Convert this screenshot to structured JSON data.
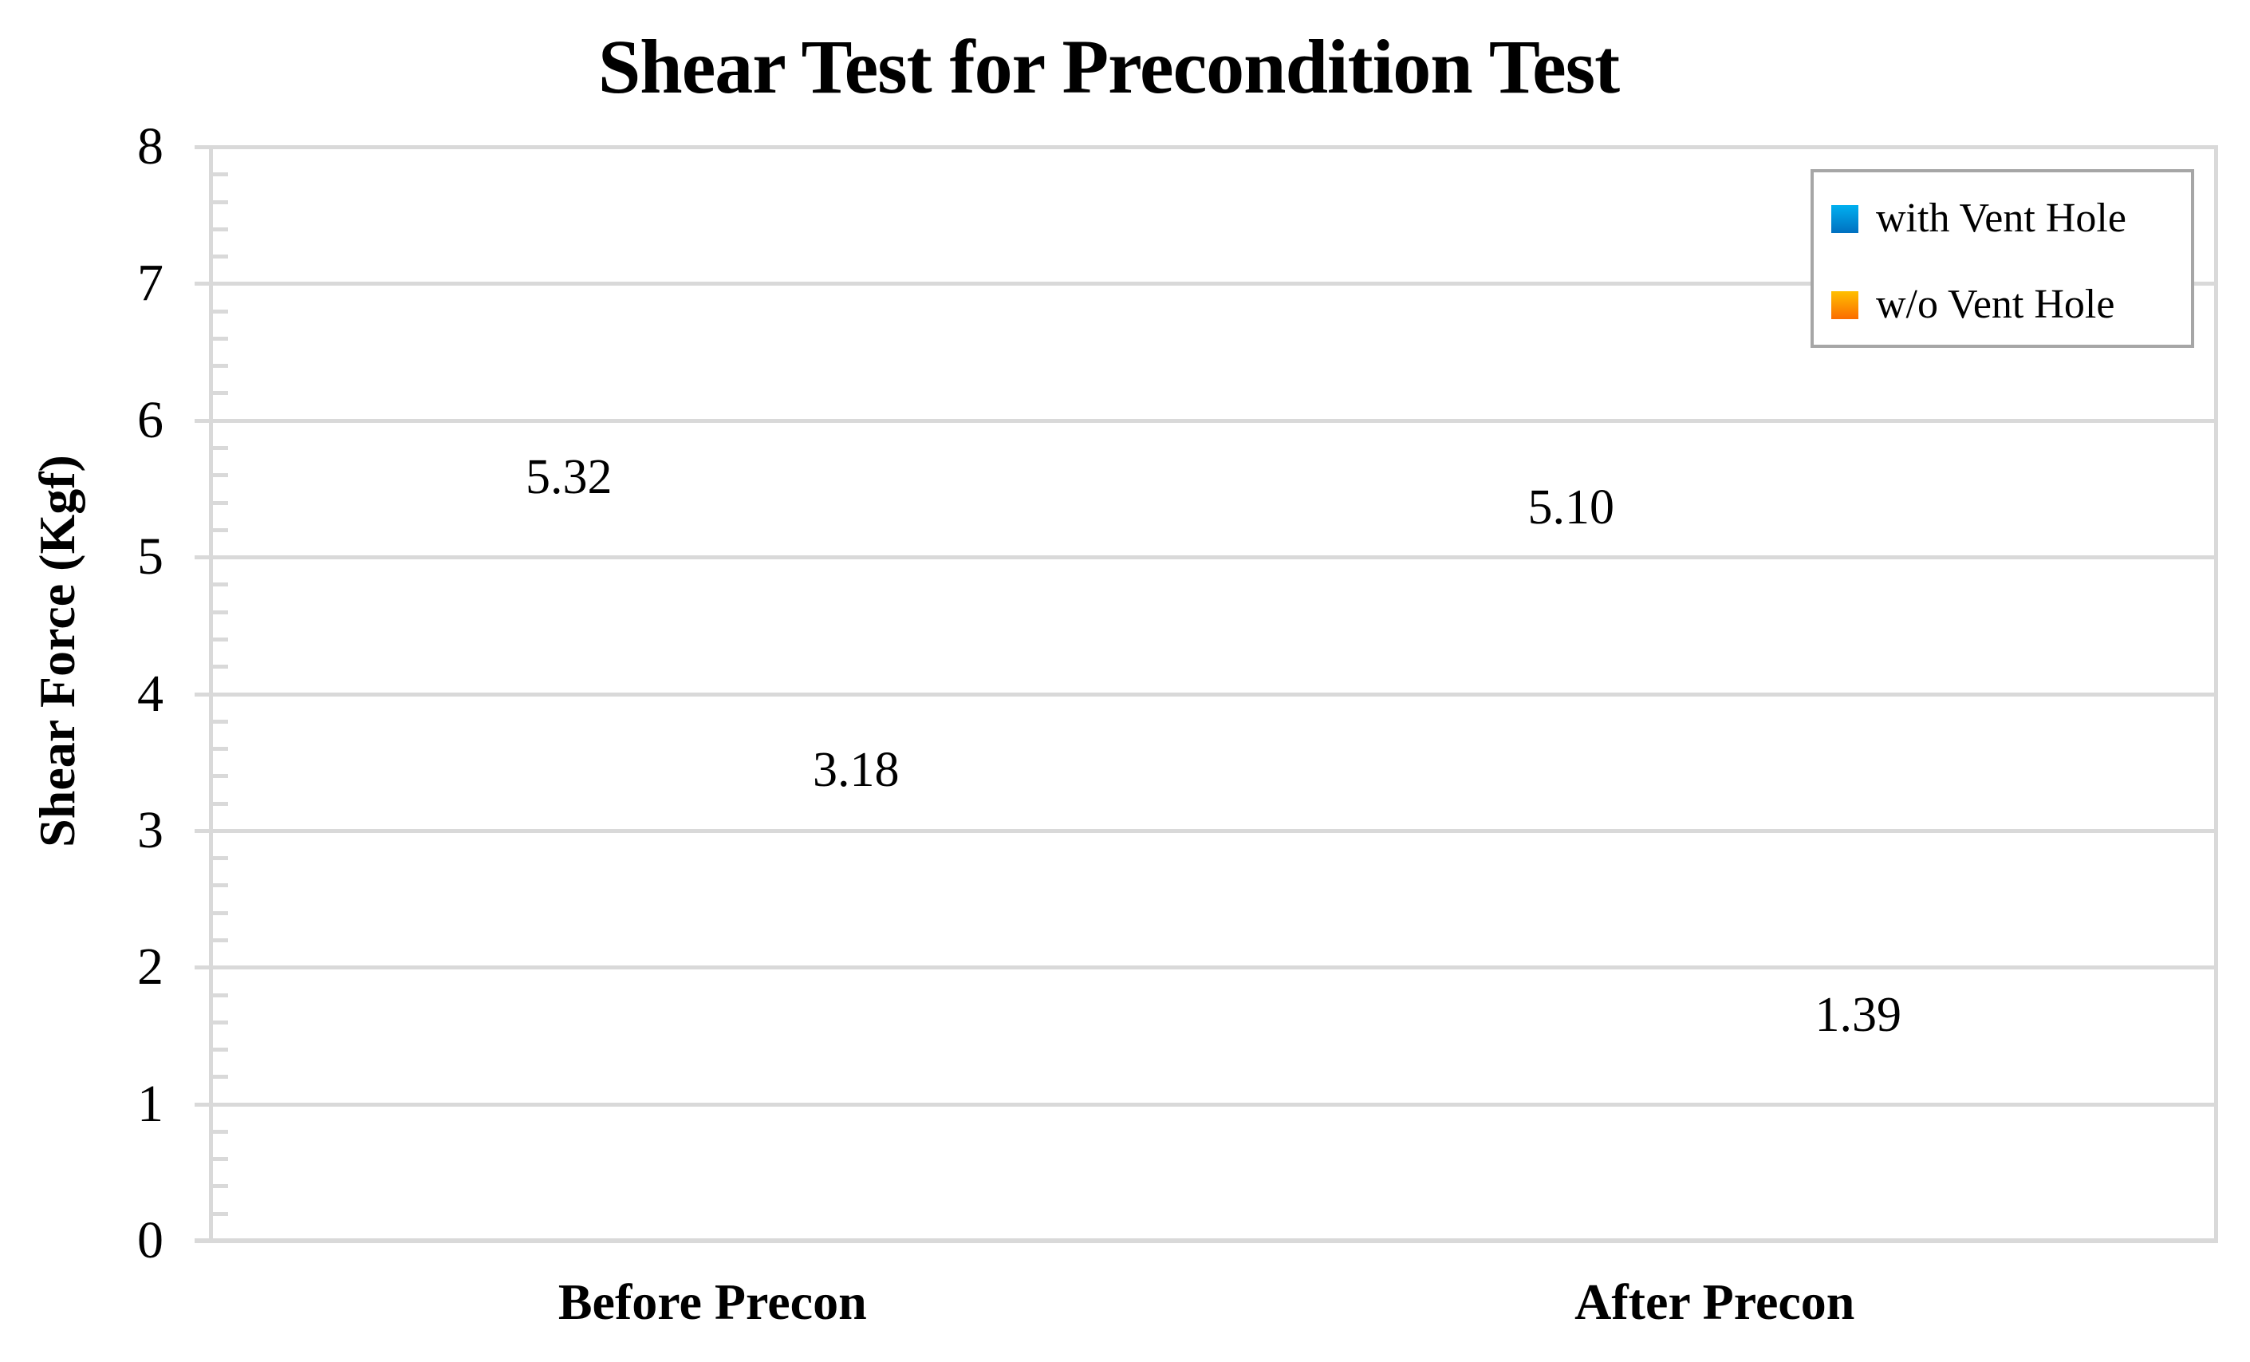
{
  "chart": {
    "title": "Shear Test for Precondition Test",
    "y_axis": {
      "title": "Shear Force (Kgf)",
      "min": 0,
      "max": 8,
      "major_step": 1,
      "minor_step": 0.2,
      "tick_labels": [
        "0",
        "1",
        "2",
        "3",
        "4",
        "5",
        "6",
        "7",
        "8"
      ]
    },
    "x_axis": {
      "categories": [
        "Before Precon",
        "After Precon"
      ]
    },
    "legend": {
      "items": [
        {
          "label": "with Vent Hole",
          "color_top": "#00B0F0",
          "color_bottom": "#0070C0"
        },
        {
          "label": "w/o Vent Hole",
          "color_top": "#FFC000",
          "color_bottom": "#FB6C00"
        }
      ]
    }
  },
  "chart_data": {
    "type": "bar",
    "title": "Shear Test for Precondition Test",
    "xlabel": "",
    "ylabel": "Shear Force (Kgf)",
    "ylim": [
      0,
      8
    ],
    "y_major_step": 1,
    "y_minor_step": 0.2,
    "grid": true,
    "legend_position": "top-right",
    "categories": [
      "Before Precon",
      "After Precon"
    ],
    "series": [
      {
        "name": "with Vent Hole",
        "values": [
          5.32,
          5.1
        ],
        "value_labels": [
          "5.32",
          "5.10"
        ],
        "color_top": "#00B0F0",
        "color_bottom": "#0070C0"
      },
      {
        "name": "w/o Vent Hole",
        "values": [
          3.18,
          1.39
        ],
        "value_labels": [
          "3.18",
          "1.39"
        ],
        "color_top": "#FFC000",
        "color_bottom": "#FB6C00"
      }
    ]
  },
  "colors": {
    "gridline": "#D9D9D9",
    "axis_line": "#D9D9D9",
    "legend_border": "#A6A6A6",
    "text": "#000000",
    "background": "#FFFFFF"
  }
}
